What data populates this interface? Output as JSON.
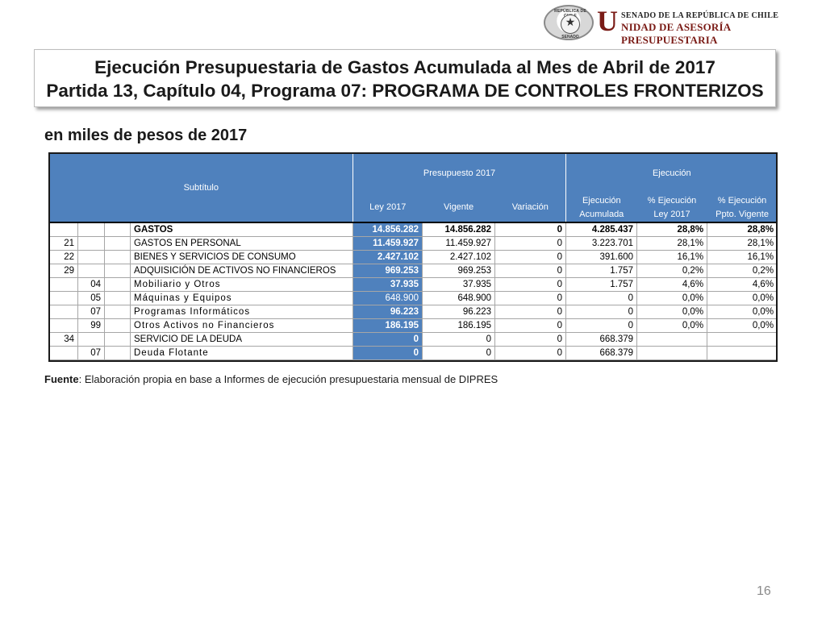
{
  "logo": {
    "seal_top_text": "REPÚBLICA DE CHILE",
    "seal_bottom_text": "SENADO",
    "big_letter": "U",
    "line1": "SENADO DE LA REPÚBLICA DE CHILE",
    "line2": "NIDAD DE ASESORÍA PRESUPUESTARIA"
  },
  "title": {
    "line1": "Ejecución Presupuestaria de Gastos Acumulada al Mes de Abril de 2017",
    "line2": "Partida 13, Capítulo 04, Programa 07: PROGRAMA DE CONTROLES FRONTERIZOS"
  },
  "subtitle": "en miles de pesos de 2017",
  "table": {
    "headers": {
      "subtitulo": "Subtítulo",
      "presupuesto": "Presupuesto 2017",
      "ejecucion": "Ejecución",
      "ley": "Ley 2017",
      "vigente": "Vigente",
      "variacion": "Variación",
      "ejec_acum_1": "Ejecución",
      "ejec_acum_2": "Acumulada",
      "pct_ley_1": "% Ejecución",
      "pct_ley_2": "Ley 2017",
      "pct_vig_1": "% Ejecución",
      "pct_vig_2": "Ppto. Vigente"
    },
    "rows": [
      {
        "sub": "",
        "item": "",
        "asig": "",
        "desc": "GASTOS",
        "ley": "14.856.282",
        "vigente": "14.856.282",
        "variacion": "0",
        "ejec": "4.285.437",
        "pct_ley": "28,8%",
        "pct_vig": "28,8%"
      },
      {
        "sub": "21",
        "item": "",
        "asig": "",
        "desc": "GASTOS EN PERSONAL",
        "ley": "11.459.927",
        "vigente": "11.459.927",
        "variacion": "0",
        "ejec": "3.223.701",
        "pct_ley": "28,1%",
        "pct_vig": "28,1%"
      },
      {
        "sub": "22",
        "item": "",
        "asig": "",
        "desc": "BIENES Y SERVICIOS DE CONSUMO",
        "ley": "2.427.102",
        "vigente": "2.427.102",
        "variacion": "0",
        "ejec": "391.600",
        "pct_ley": "16,1%",
        "pct_vig": "16,1%"
      },
      {
        "sub": "29",
        "item": "",
        "asig": "",
        "desc": "ADQUISICIÓN DE ACTIVOS NO FINANCIEROS",
        "ley": "969.253",
        "vigente": "969.253",
        "variacion": "0",
        "ejec": "1.757",
        "pct_ley": "0,2%",
        "pct_vig": "0,2%"
      },
      {
        "sub": "",
        "item": "04",
        "asig": "",
        "desc": "Mobiliario y Otros",
        "ley": "37.935",
        "vigente": "37.935",
        "variacion": "0",
        "ejec": "1.757",
        "pct_ley": "4,6%",
        "pct_vig": "4,6%"
      },
      {
        "sub": "",
        "item": "05",
        "asig": "",
        "desc": "Máquinas y Equipos",
        "ley": "648.900",
        "vigente": "648.900",
        "variacion": "0",
        "ejec": "0",
        "pct_ley": "0,0%",
        "pct_vig": "0,0%"
      },
      {
        "sub": "",
        "item": "07",
        "asig": "",
        "desc": "Programas Informáticos",
        "ley": "96.223",
        "vigente": "96.223",
        "variacion": "0",
        "ejec": "0",
        "pct_ley": "0,0%",
        "pct_vig": "0,0%"
      },
      {
        "sub": "",
        "item": "99",
        "asig": "",
        "desc": "Otros Activos no Financieros",
        "ley": "186.195",
        "vigente": "186.195",
        "variacion": "0",
        "ejec": "0",
        "pct_ley": "0,0%",
        "pct_vig": "0,0%"
      },
      {
        "sub": "34",
        "item": "",
        "asig": "",
        "desc": "SERVICIO DE LA DEUDA",
        "ley": "0",
        "vigente": "0",
        "variacion": "0",
        "ejec": "668.379",
        "pct_ley": "",
        "pct_vig": ""
      },
      {
        "sub": "",
        "item": "07",
        "asig": "",
        "desc": "Deuda Flotante",
        "ley": "0",
        "vigente": "0",
        "variacion": "0",
        "ejec": "668.379",
        "pct_ley": "",
        "pct_vig": ""
      }
    ]
  },
  "fuente": {
    "label": "Fuente",
    "text": ": Elaboración propia en base  a Informes de ejecución presupuestaria mensual de DIPRES"
  },
  "page_number": "16",
  "colors": {
    "header_blue": "#4f81bd",
    "logo_red": "#7a1b16"
  }
}
